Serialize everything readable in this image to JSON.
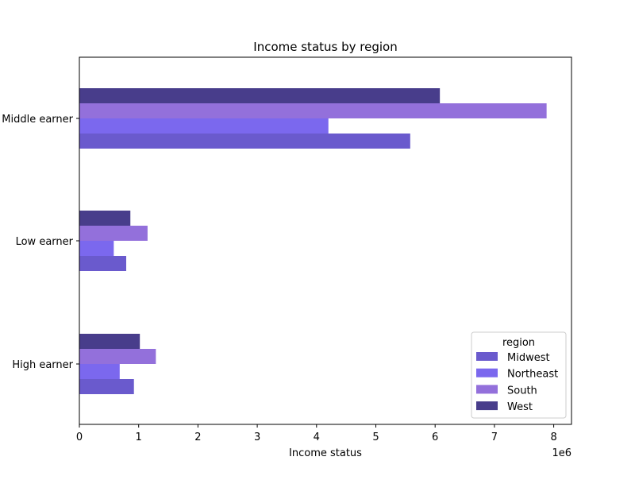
{
  "chart_data": {
    "type": "bar",
    "orientation": "horizontal",
    "title": "Income status by region",
    "xlabel": "Income status",
    "ylabel": "",
    "x_offset_label": "1e6",
    "xlim": [
      0,
      8300000
    ],
    "x_ticks": [
      0,
      1,
      2,
      3,
      4,
      5,
      6,
      7,
      8
    ],
    "x_tick_scale": 1000000,
    "grid": false,
    "categories": [
      "High earner",
      "Low earner",
      "Middle earner"
    ],
    "legend": {
      "title": "region",
      "placement": "lower-right"
    },
    "series": [
      {
        "name": "Midwest",
        "color": "#6a5acd",
        "values": [
          920000,
          790000,
          5580000
        ]
      },
      {
        "name": "Northeast",
        "color": "#7b68ee",
        "values": [
          680000,
          580000,
          4200000
        ]
      },
      {
        "name": "South",
        "color": "#9370db",
        "values": [
          1290000,
          1150000,
          7880000
        ]
      },
      {
        "name": "West",
        "color": "#483d8b",
        "values": [
          1020000,
          860000,
          6080000
        ]
      }
    ]
  }
}
